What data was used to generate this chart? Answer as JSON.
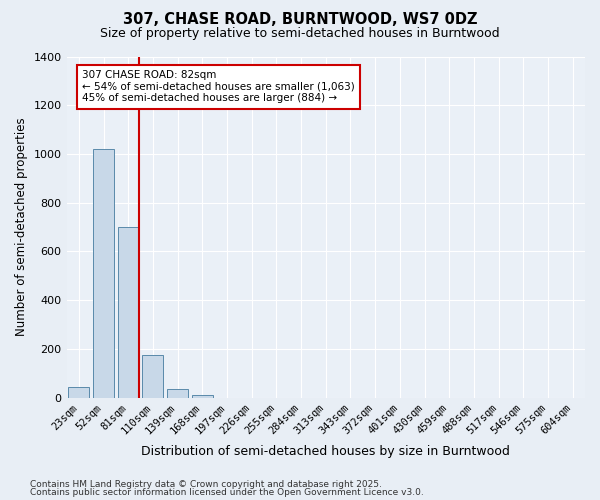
{
  "title": "307, CHASE ROAD, BURNTWOOD, WS7 0DZ",
  "subtitle": "Size of property relative to semi-detached houses in Burntwood",
  "xlabel": "Distribution of semi-detached houses by size in Burntwood",
  "ylabel": "Number of semi-detached properties",
  "categories": [
    "23sqm",
    "52sqm",
    "81sqm",
    "110sqm",
    "139sqm",
    "168sqm",
    "197sqm",
    "226sqm",
    "255sqm",
    "284sqm",
    "313sqm",
    "343sqm",
    "372sqm",
    "401sqm",
    "430sqm",
    "459sqm",
    "488sqm",
    "517sqm",
    "546sqm",
    "575sqm",
    "604sqm"
  ],
  "values": [
    45,
    1020,
    700,
    175,
    35,
    10,
    0,
    0,
    0,
    0,
    0,
    0,
    0,
    0,
    0,
    0,
    0,
    0,
    0,
    0,
    0
  ],
  "bar_color": "#c8d8e8",
  "bar_edge_color": "#5a8aaa",
  "vline_color": "#cc0000",
  "vline_index": 2,
  "ylim": [
    0,
    1400
  ],
  "yticks": [
    0,
    200,
    400,
    600,
    800,
    1000,
    1200,
    1400
  ],
  "annotation_title": "307 CHASE ROAD: 82sqm",
  "annotation_line1": "← 54% of semi-detached houses are smaller (1,063)",
  "annotation_line2": "45% of semi-detached houses are larger (884) →",
  "annotation_box_color": "#ffffff",
  "annotation_box_edge": "#cc0000",
  "footer1": "Contains HM Land Registry data © Crown copyright and database right 2025.",
  "footer2": "Contains public sector information licensed under the Open Government Licence v3.0.",
  "bg_color": "#e8eef5",
  "plot_bg_color": "#eaf0f7",
  "grid_color": "#ffffff",
  "title_fontsize": 10.5,
  "subtitle_fontsize": 9,
  "axis_label_fontsize": 8.5,
  "tick_fontsize": 7.5,
  "annotation_fontsize": 7.5,
  "footer_fontsize": 6.5
}
